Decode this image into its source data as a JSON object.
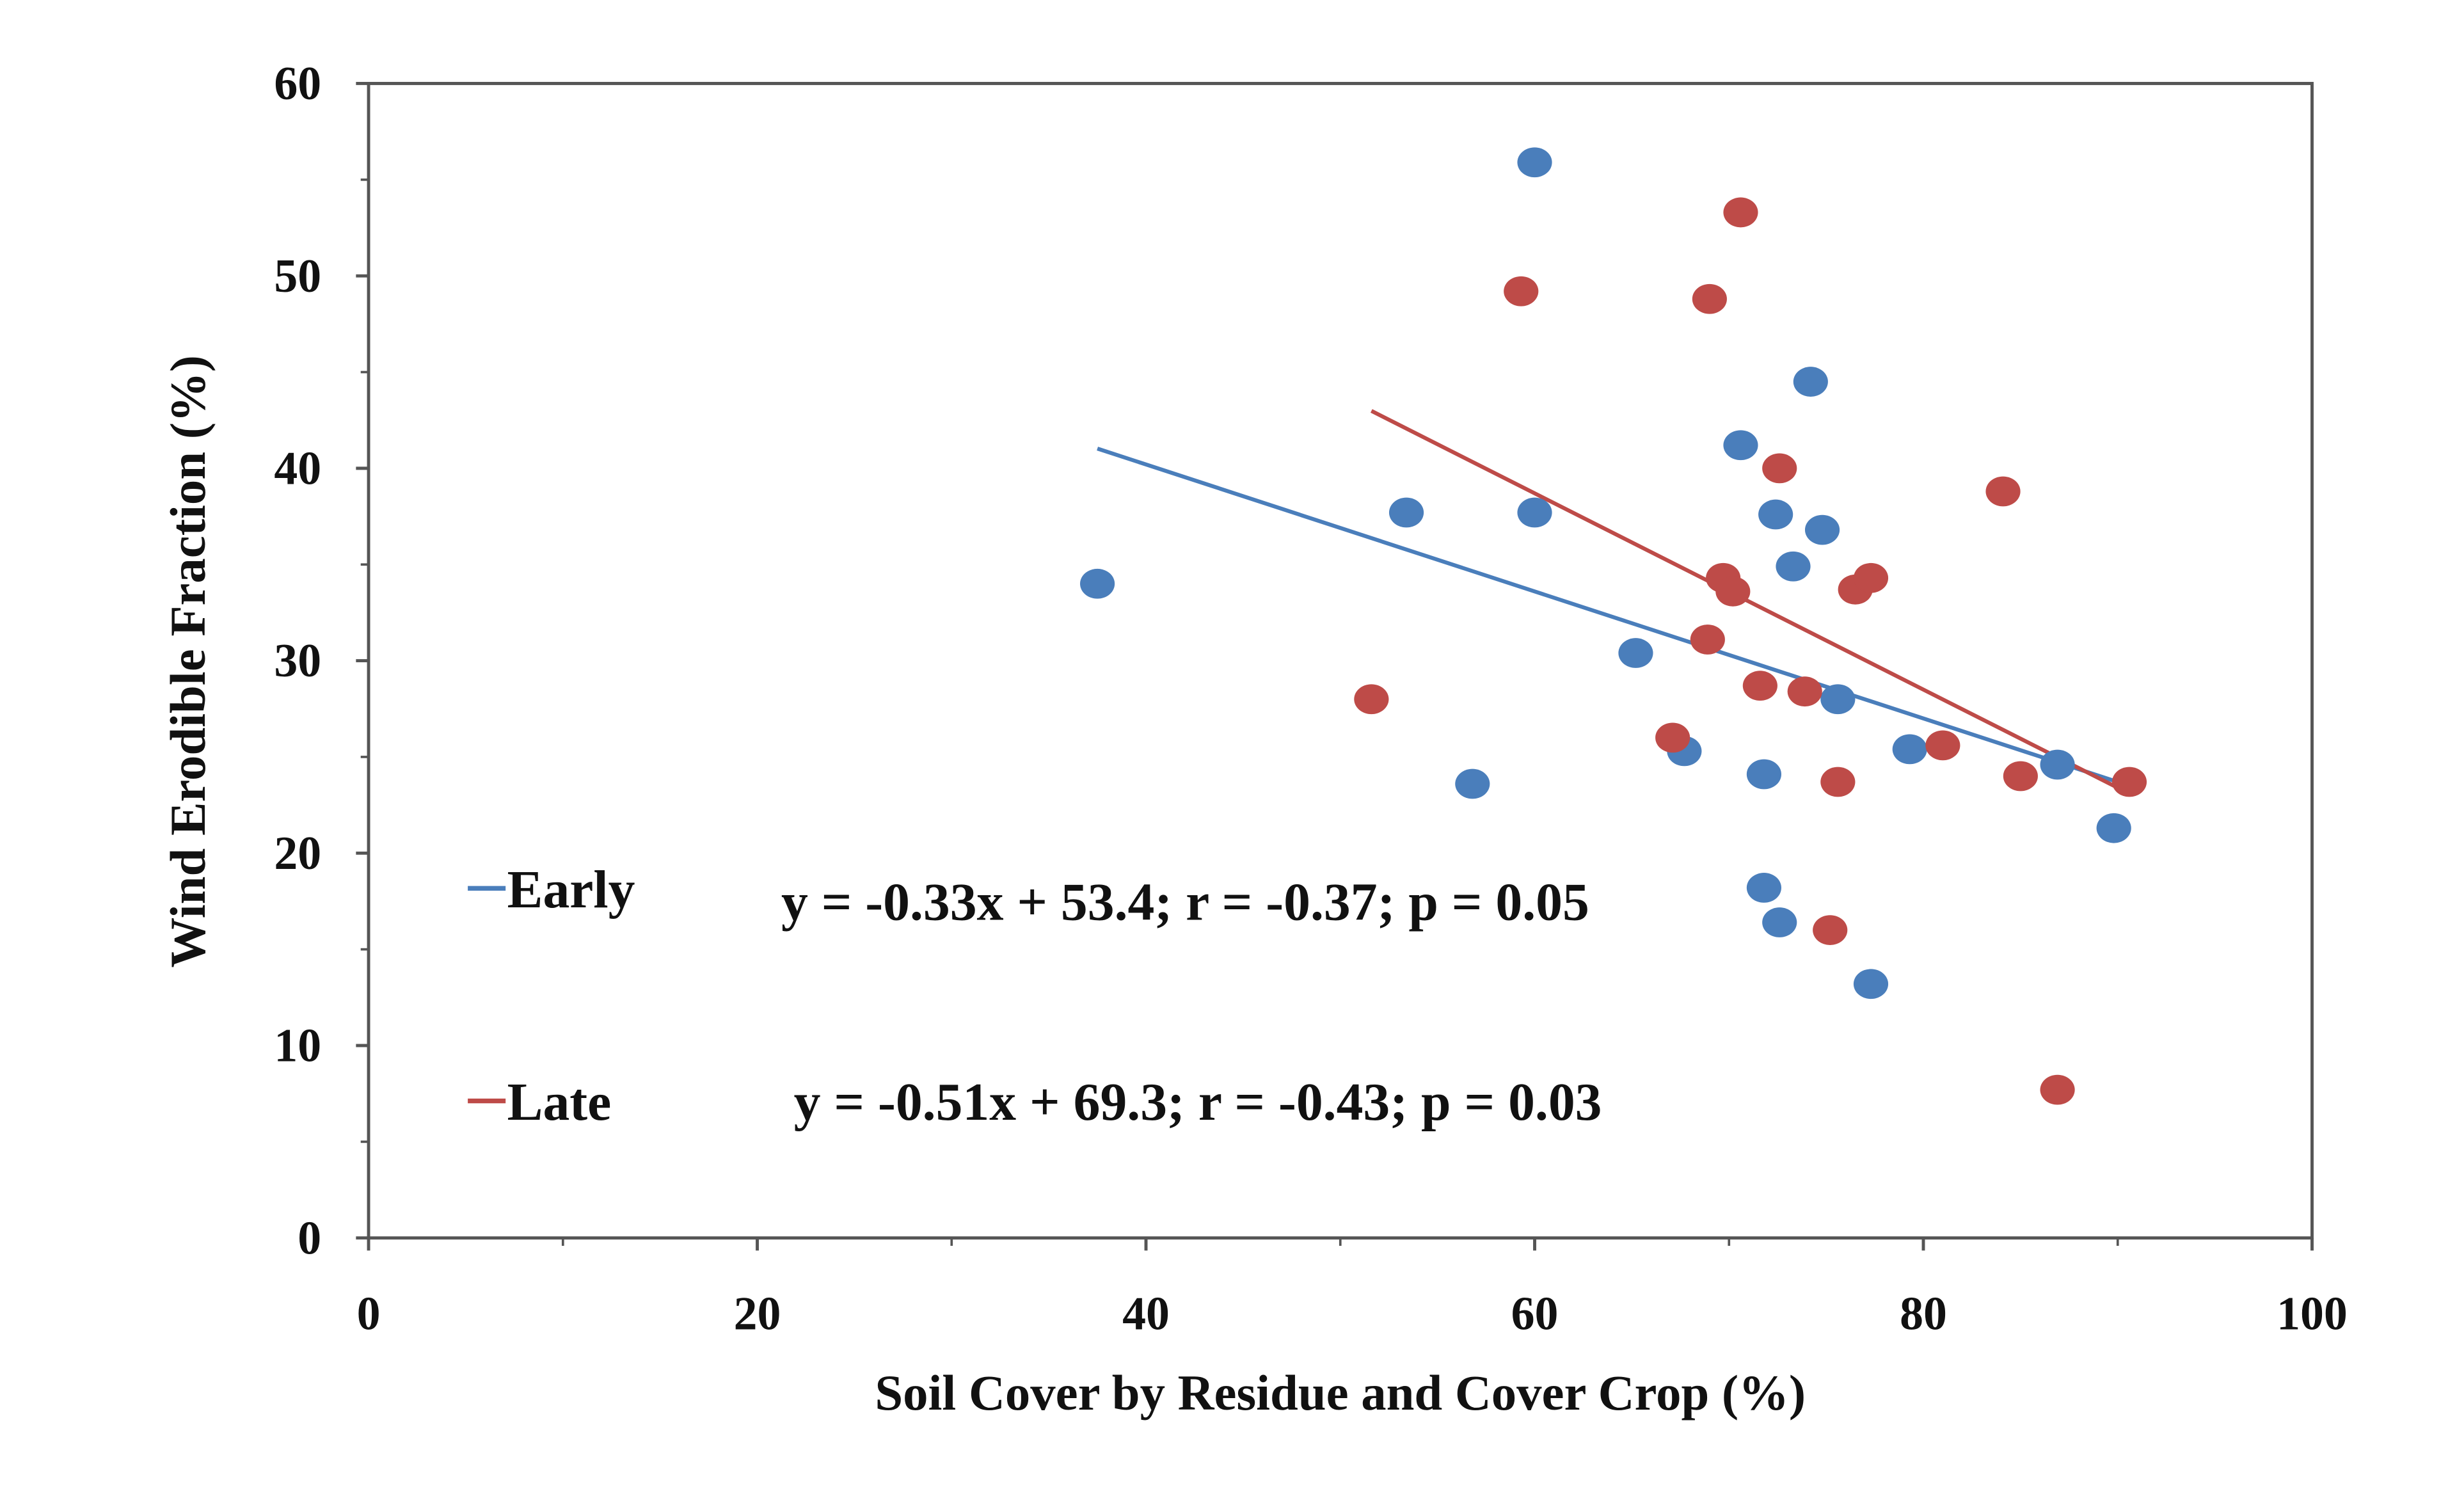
{
  "chart_data": {
    "type": "scatter",
    "xlabel": "Soil Cover by Residue and Cover Crop (%)",
    "ylabel": "Wind Erodible Fraction (%)",
    "xlim": [
      0,
      100
    ],
    "ylim": [
      0,
      60
    ],
    "xticks": [
      "0",
      "20",
      "40",
      "60",
      "80",
      "100"
    ],
    "yticks": [
      "0",
      "10",
      "20",
      "30",
      "40",
      "50",
      "60"
    ],
    "grid": false,
    "legend_placement": "bottom-left",
    "series": [
      {
        "name": "Early",
        "color": "#4a7ebb",
        "points": [
          [
            37.5,
            34.0
          ],
          [
            60.0,
            55.9
          ],
          [
            53.4,
            37.7
          ],
          [
            60.0,
            37.7
          ],
          [
            56.8,
            23.6
          ],
          [
            65.2,
            30.4
          ],
          [
            67.7,
            25.3
          ],
          [
            70.6,
            41.2
          ],
          [
            74.2,
            44.5
          ],
          [
            72.4,
            37.6
          ],
          [
            74.8,
            36.8
          ],
          [
            73.3,
            34.9
          ],
          [
            75.6,
            28.0
          ],
          [
            71.8,
            24.1
          ],
          [
            79.3,
            25.4
          ],
          [
            86.9,
            24.6
          ],
          [
            89.8,
            21.3
          ],
          [
            71.8,
            18.2
          ],
          [
            72.6,
            16.4
          ],
          [
            77.3,
            13.2
          ]
        ],
        "trend": {
          "slope": -0.33,
          "intercept": 53.4,
          "x_range": [
            37.5,
            90
          ]
        },
        "equation": "y = -0.33x + 53.4; r = -0.37; p = 0.05"
      },
      {
        "name": "Late",
        "color": "#be4b48",
        "points": [
          [
            51.6,
            28.0
          ],
          [
            59.3,
            49.2
          ],
          [
            69.0,
            48.8
          ],
          [
            70.6,
            53.3
          ],
          [
            72.6,
            40.0
          ],
          [
            84.1,
            38.8
          ],
          [
            69.7,
            34.3
          ],
          [
            70.2,
            33.6
          ],
          [
            76.5,
            33.7
          ],
          [
            77.3,
            34.3
          ],
          [
            68.9,
            31.1
          ],
          [
            71.6,
            28.7
          ],
          [
            73.9,
            28.4
          ],
          [
            67.1,
            26.0
          ],
          [
            75.6,
            23.7
          ],
          [
            81.0,
            25.6
          ],
          [
            85.0,
            24.0
          ],
          [
            90.6,
            23.7
          ],
          [
            75.2,
            16.0
          ],
          [
            86.9,
            7.7
          ]
        ],
        "trend": {
          "slope": -0.51,
          "intercept": 69.3,
          "x_range": [
            51.6,
            90.5
          ]
        },
        "equation": "y = -0.51x + 69.3; r = -0.43; p = 0.03"
      }
    ]
  }
}
